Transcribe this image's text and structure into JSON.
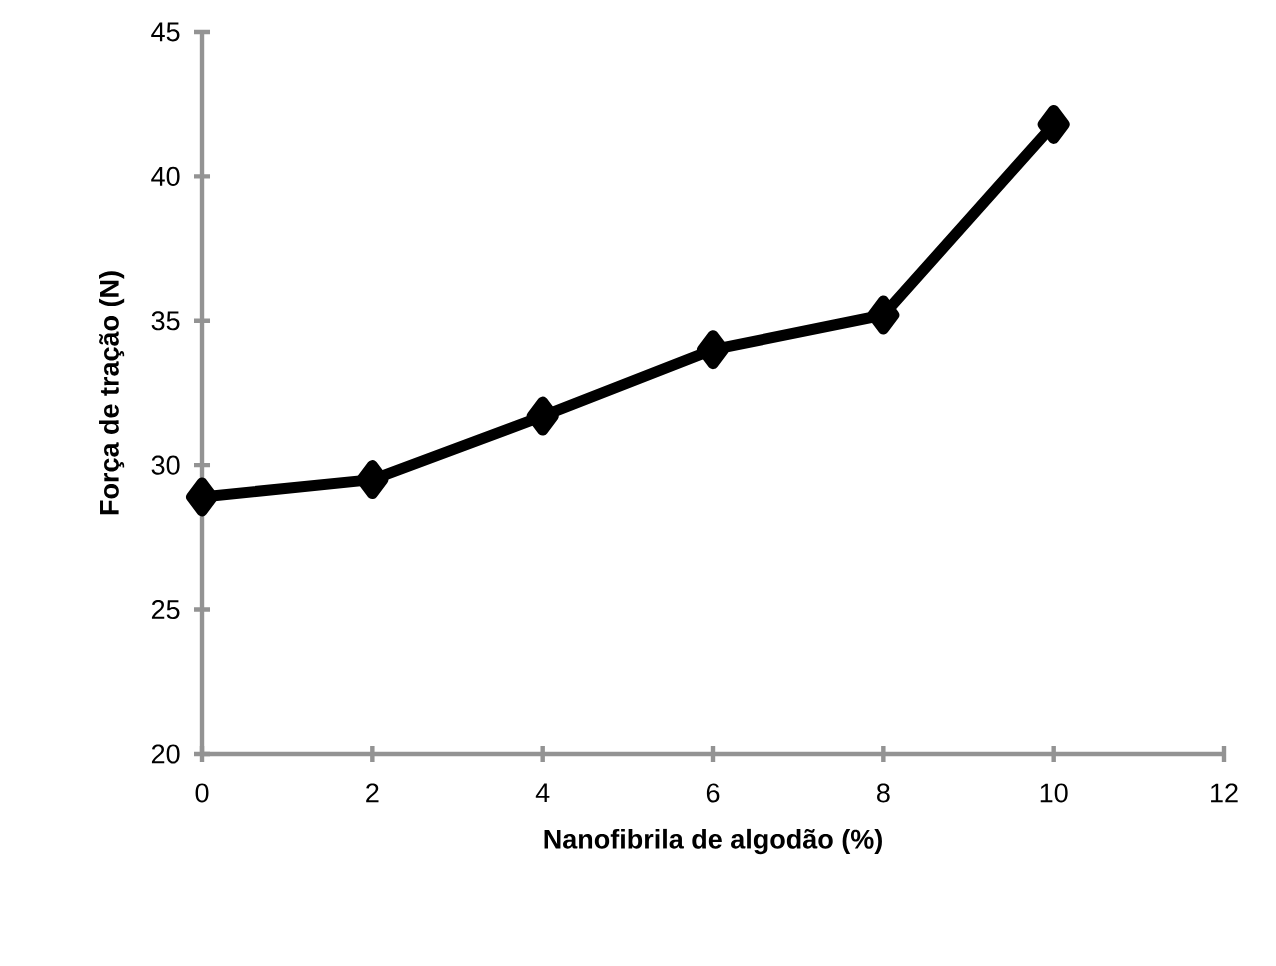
{
  "chart_data": {
    "type": "line",
    "xlabel": "Nanofibrila de algodão (%)",
    "ylabel": "Força de tração (N)",
    "x": [
      0,
      2,
      4,
      6,
      8,
      10
    ],
    "series": [
      {
        "color": "#000000",
        "values": [
          28.9,
          29.5,
          31.7,
          34.0,
          35.2,
          41.8
        ]
      }
    ],
    "xlim": [
      0,
      12
    ],
    "xticks": [
      0,
      2,
      4,
      6,
      8,
      10,
      12
    ],
    "ylim": [
      20,
      45
    ],
    "yticks": [
      20,
      25,
      30,
      35,
      40,
      45
    ],
    "marker": "diamond",
    "line_style": "solid",
    "grid": false
  }
}
